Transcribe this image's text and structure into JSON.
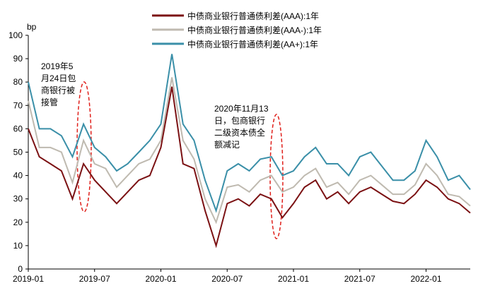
{
  "chart_data": {
    "type": "line",
    "y_label": "bp",
    "x": [
      "2019-01",
      "2019-02",
      "2019-03",
      "2019-04",
      "2019-05",
      "2019-06",
      "2019-07",
      "2019-08",
      "2019-09",
      "2019-10",
      "2019-11",
      "2019-12",
      "2020-01",
      "2020-02",
      "2020-03",
      "2020-04",
      "2020-05",
      "2020-06",
      "2020-07",
      "2020-08",
      "2020-09",
      "2020-10",
      "2020-11",
      "2020-12",
      "2021-01",
      "2021-02",
      "2021-03",
      "2021-04",
      "2021-05",
      "2021-06",
      "2021-07",
      "2021-08",
      "2021-09",
      "2021-10",
      "2021-11",
      "2021-12",
      "2022-01",
      "2022-02",
      "2022-03",
      "2022-04",
      "2022-05"
    ],
    "xticks": [
      "2019-01",
      "2019-07",
      "2020-01",
      "2020-07",
      "2021-01",
      "2021-07",
      "2022-01"
    ],
    "ylim": [
      0,
      100
    ],
    "yticks": [
      0,
      10,
      20,
      30,
      40,
      50,
      60,
      70,
      80,
      90,
      100
    ],
    "legend": "top",
    "series": [
      {
        "name": "中债商业银行普通债利差(AAA):1年",
        "color": "#7b1113",
        "values": [
          60,
          48,
          45,
          42,
          30,
          45,
          38,
          33,
          28,
          33,
          38,
          40,
          52,
          78,
          45,
          43,
          25,
          10,
          28,
          30,
          27,
          32,
          30,
          22,
          28,
          35,
          38,
          30,
          33,
          28,
          33,
          35,
          32,
          29,
          28,
          32,
          38,
          35,
          30,
          28,
          24
        ]
      },
      {
        "name": "中债商业银行普通债利差(AAA-):1年",
        "color": "#bfbab0",
        "values": [
          72,
          52,
          52,
          50,
          37,
          55,
          45,
          43,
          35,
          40,
          45,
          47,
          55,
          82,
          55,
          47,
          30,
          20,
          35,
          36,
          33,
          38,
          40,
          33,
          35,
          40,
          43,
          35,
          37,
          32,
          38,
          40,
          36,
          32,
          32,
          36,
          45,
          40,
          32,
          31,
          27
        ]
      },
      {
        "name": "中债商业银行普通债利差(AA+):1年",
        "color": "#3a8fa8",
        "values": [
          80,
          60,
          60,
          57,
          48,
          62,
          52,
          48,
          42,
          45,
          50,
          55,
          62,
          92,
          62,
          55,
          38,
          25,
          42,
          45,
          42,
          47,
          48,
          40,
          42,
          48,
          52,
          45,
          45,
          40,
          48,
          50,
          44,
          38,
          38,
          42,
          55,
          48,
          38,
          40,
          34
        ]
      }
    ],
    "annotations": [
      {
        "lines": [
          "2019年5",
          "月24日包",
          "商银行被",
          "接管"
        ]
      },
      {
        "lines": [
          "2020年11月13",
          "日，包商银行",
          "二级资本债全",
          "额减记"
        ]
      }
    ]
  }
}
